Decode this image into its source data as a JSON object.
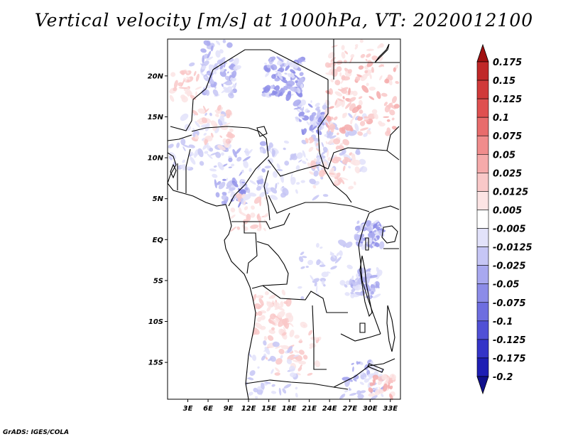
{
  "title": "Vertical velocity [m/s] at 1000hPa, VT: 2020012100",
  "credit": "GrADS: IGES/COLA",
  "map": {
    "lat_range": [
      -19.5,
      24.5
    ],
    "lon_range": [
      0,
      34.5
    ],
    "lat_ticks": [
      {
        "value": 20,
        "label": "20N"
      },
      {
        "value": 15,
        "label": "15N"
      },
      {
        "value": 10,
        "label": "10N"
      },
      {
        "value": 5,
        "label": "5N"
      },
      {
        "value": 0,
        "label": "EQ"
      },
      {
        "value": -5,
        "label": "5S"
      },
      {
        "value": -10,
        "label": "10S"
      },
      {
        "value": -15,
        "label": "15S"
      }
    ],
    "lon_ticks": [
      {
        "value": 3,
        "label": "3E"
      },
      {
        "value": 6,
        "label": "6E"
      },
      {
        "value": 9,
        "label": "9E"
      },
      {
        "value": 12,
        "label": "12E"
      },
      {
        "value": 15,
        "label": "15E"
      },
      {
        "value": 18,
        "label": "18E"
      },
      {
        "value": 21,
        "label": "21E"
      },
      {
        "value": 24,
        "label": "24E"
      },
      {
        "value": 27,
        "label": "27E"
      },
      {
        "value": 30,
        "label": "30E"
      },
      {
        "value": 33,
        "label": "33E"
      }
    ]
  },
  "colorbar": {
    "levels": [
      {
        "label": "0.175",
        "color": "#b01a1a"
      },
      {
        "label": "0.15",
        "color": "#c02828"
      },
      {
        "label": "0.125",
        "color": "#d03a3a"
      },
      {
        "label": "0.1",
        "color": "#df5050"
      },
      {
        "label": "0.075",
        "color": "#e86c6c"
      },
      {
        "label": "0.05",
        "color": "#f08c8c"
      },
      {
        "label": "0.025",
        "color": "#f5aaaa"
      },
      {
        "label": "0.0125",
        "color": "#f9c8c8"
      },
      {
        "label": "0.005",
        "color": "#fce4e4"
      },
      {
        "label": "-0.005",
        "color": "#ffffff"
      },
      {
        "label": "-0.0125",
        "color": "#e2e2fa"
      },
      {
        "label": "-0.025",
        "color": "#c6c6f5"
      },
      {
        "label": "-0.05",
        "color": "#a8a8ef"
      },
      {
        "label": "-0.075",
        "color": "#8c8ce8"
      },
      {
        "label": "-0.1",
        "color": "#6e6ee0"
      },
      {
        "label": "-0.125",
        "color": "#5050d6"
      },
      {
        "label": "-0.175",
        "color": "#3434c8"
      },
      {
        "label": "-0.2",
        "color": "#1e1eb4"
      }
    ],
    "top_triangle_color": "#a01010",
    "bottom_triangle_color": "#10108c"
  }
}
